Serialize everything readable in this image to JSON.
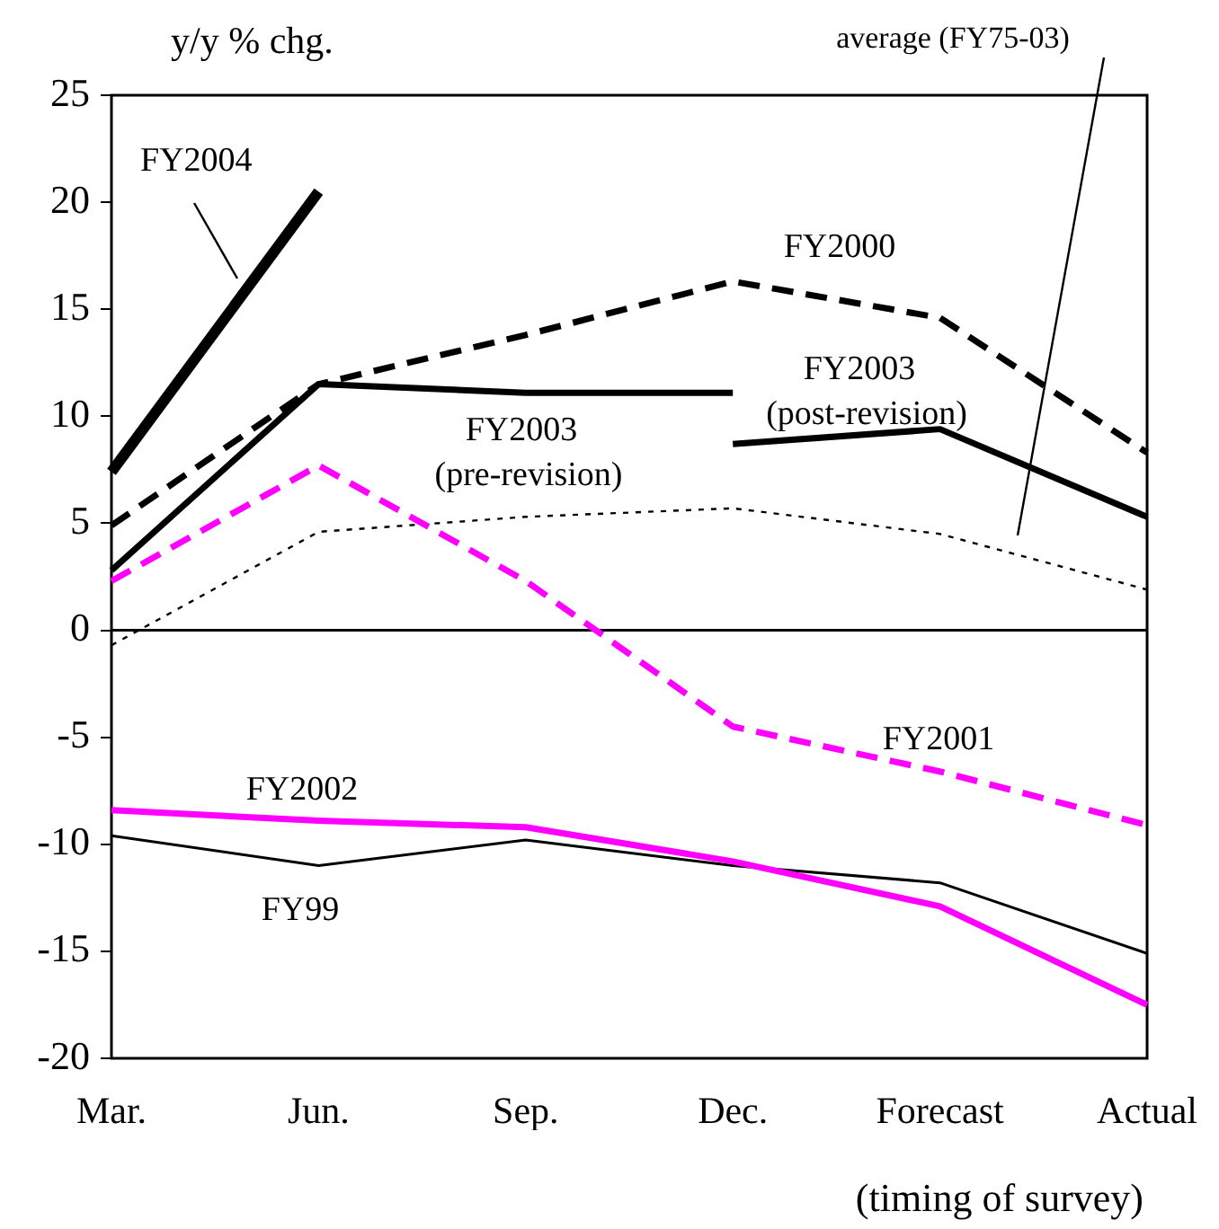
{
  "chart_data": {
    "type": "line",
    "ylabel": "y/y % chg.",
    "xlabel": "(timing of survey)",
    "categories": [
      "Mar.",
      "Jun.",
      "Sep.",
      "Dec.",
      "Forecast",
      "Actual"
    ],
    "ylim": [
      -20,
      25
    ],
    "yticks": [
      -20,
      -15,
      -10,
      -5,
      0,
      5,
      10,
      15,
      20,
      25
    ],
    "grid": false,
    "legend": false,
    "marker": "none",
    "ref_lines": [
      {
        "axis": "y",
        "value": 0,
        "color": "#000000"
      }
    ],
    "series": [
      {
        "name": "FY2004",
        "color": "#000000",
        "line_style": "solid",
        "values": [
          7.4,
          20.5,
          null,
          null,
          null,
          null
        ]
      },
      {
        "name": "FY2003 (pre-revision)",
        "color": "#000000",
        "line_style": "solid",
        "values": [
          2.8,
          11.5,
          11.1,
          11.1,
          null,
          null
        ]
      },
      {
        "name": "FY2003 (post-revision)",
        "color": "#000000",
        "line_style": "solid",
        "values": [
          null,
          null,
          null,
          8.7,
          9.4,
          5.3
        ]
      },
      {
        "name": "FY2000",
        "color": "#000000",
        "line_style": "dashed",
        "values": [
          4.9,
          11.5,
          13.8,
          16.3,
          14.6,
          8.3
        ]
      },
      {
        "name": "FY2001",
        "color": "#ff00ff",
        "line_style": "dashed",
        "values": [
          2.3,
          7.7,
          2.3,
          -4.5,
          -6.6,
          -9.1
        ]
      },
      {
        "name": "average (FY75-03)",
        "color": "#000000",
        "line_style": "dotted",
        "values": [
          -0.7,
          4.6,
          5.3,
          5.7,
          4.5,
          1.9
        ]
      },
      {
        "name": "FY2002",
        "color": "#ff00ff",
        "line_style": "solid",
        "values": [
          -8.4,
          -8.9,
          -9.2,
          -10.8,
          -12.9,
          -17.5
        ]
      },
      {
        "name": "FY99",
        "color": "#000000",
        "line_style": "solid",
        "values": [
          -9.6,
          -11,
          -9.8,
          -11,
          -11.8,
          -15.1
        ]
      }
    ]
  }
}
